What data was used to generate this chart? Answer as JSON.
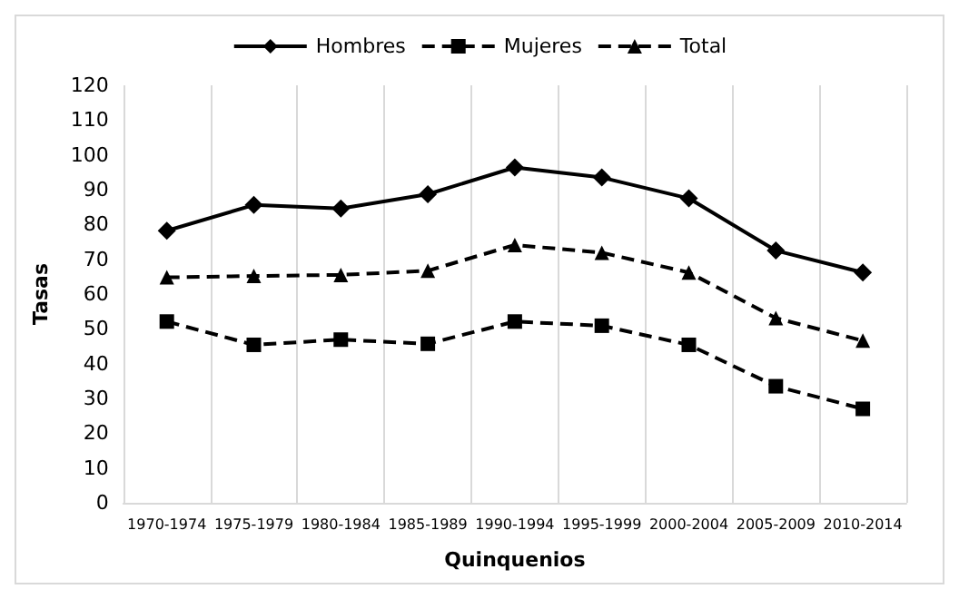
{
  "chart_data": {
    "type": "line",
    "xlabel": "Quinquenios",
    "ylabel": "Tasas",
    "categories": [
      "1970-1974",
      "1975-1979",
      "1980-1984",
      "1985-1989",
      "1990-1994",
      "1995-1999",
      "2000-2004",
      "2005-2009",
      "2010-2014"
    ],
    "series": [
      {
        "name": "Hombres",
        "color": "#000000",
        "marker": "diamond",
        "line_style": "solid",
        "values": [
          78.2,
          85.6,
          84.6,
          88.7,
          96.4,
          93.5,
          87.5,
          72.5,
          66.2
        ]
      },
      {
        "name": "Mujeres",
        "color": "#000000",
        "marker": "square",
        "line_style": "dashed",
        "values": [
          52.1,
          45.4,
          46.9,
          45.7,
          52.1,
          50.9,
          45.4,
          33.5,
          27
        ]
      },
      {
        "name": "Total",
        "color": "#000000",
        "marker": "triangle",
        "line_style": "dashed",
        "values": [
          64.8,
          65.2,
          65.5,
          66.7,
          74.1,
          71.9,
          66.2,
          53.1,
          46.6
        ]
      }
    ],
    "ylim": [
      0,
      120
    ],
    "yticks": [
      0,
      10,
      20,
      30,
      40,
      50,
      60,
      70,
      80,
      90,
      100,
      110,
      120
    ],
    "grid": "x",
    "legend": "top"
  }
}
